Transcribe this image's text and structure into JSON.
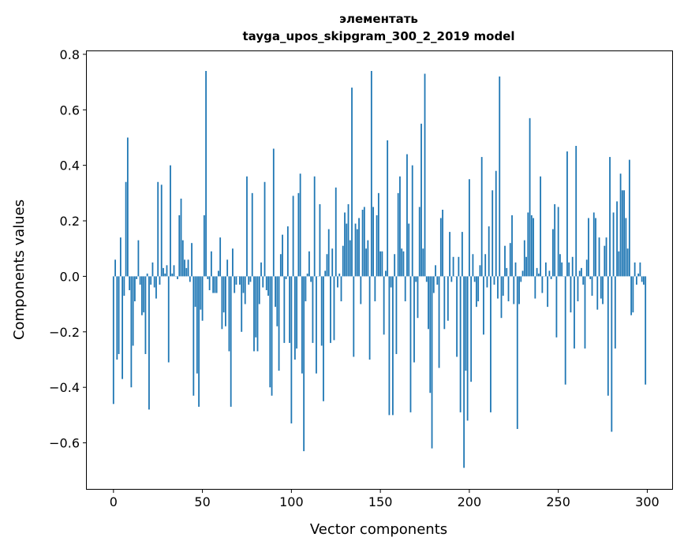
{
  "chart_data": {
    "type": "bar",
    "title_line1": "элементать",
    "title_line2": "tayga_upos_skipgram_300_2_2019 model",
    "xlabel": "Vector components",
    "ylabel": "Components values",
    "xlim": [
      -15,
      314
    ],
    "ylim": [
      -0.766,
      0.811
    ],
    "xticks": [
      0,
      50,
      100,
      150,
      200,
      250,
      300
    ],
    "xtick_labels": [
      "0",
      "50",
      "100",
      "150",
      "200",
      "250",
      "300"
    ],
    "yticks": [
      -0.6,
      -0.4,
      -0.2,
      0.0,
      0.2,
      0.4,
      0.6,
      0.8
    ],
    "ytick_labels": [
      "−0.6",
      "−0.4",
      "−0.2",
      "0.0",
      "0.2",
      "0.4",
      "0.6",
      "0.8"
    ],
    "grid": false,
    "bar_color": "#1f77b4",
    "values": [
      -0.46,
      0.06,
      -0.3,
      -0.28,
      0.14,
      -0.37,
      -0.07,
      0.34,
      0.5,
      -0.05,
      -0.4,
      -0.25,
      -0.09,
      -0.01,
      0.13,
      -0.03,
      -0.14,
      -0.13,
      -0.28,
      0.01,
      -0.48,
      -0.03,
      0.05,
      -0.04,
      -0.08,
      0.34,
      -0.03,
      0.33,
      0.03,
      0.01,
      0.04,
      -0.31,
      0.4,
      0.01,
      0.04,
      0.0,
      -0.01,
      0.22,
      0.28,
      0.13,
      0.06,
      0.03,
      0.06,
      -0.02,
      0.12,
      -0.43,
      -0.11,
      -0.35,
      -0.47,
      -0.12,
      -0.16,
      0.22,
      0.74,
      -0.01,
      -0.05,
      0.09,
      -0.06,
      -0.06,
      -0.06,
      0.02,
      0.14,
      -0.19,
      -0.13,
      -0.18,
      0.06,
      -0.27,
      -0.47,
      0.1,
      -0.06,
      -0.03,
      0.0,
      -0.03,
      -0.2,
      -0.06,
      -0.1,
      0.36,
      -0.03,
      -0.02,
      0.3,
      -0.27,
      -0.22,
      -0.27,
      -0.1,
      0.05,
      -0.04,
      0.34,
      -0.05,
      -0.07,
      -0.4,
      -0.43,
      0.46,
      -0.11,
      -0.18,
      -0.34,
      0.08,
      0.15,
      -0.24,
      -0.01,
      0.18,
      -0.24,
      -0.53,
      0.29,
      -0.3,
      -0.26,
      0.3,
      0.37,
      -0.35,
      -0.63,
      -0.09,
      0.01,
      0.09,
      -0.02,
      -0.24,
      0.36,
      -0.35,
      0.0,
      0.26,
      -0.25,
      -0.45,
      0.02,
      0.08,
      0.17,
      -0.24,
      0.1,
      -0.23,
      0.32,
      -0.04,
      0.01,
      -0.09,
      0.11,
      0.23,
      0.19,
      0.26,
      0.13,
      0.68,
      -0.29,
      0.19,
      0.17,
      0.21,
      -0.1,
      0.24,
      0.25,
      0.1,
      0.13,
      -0.3,
      0.74,
      0.25,
      -0.09,
      0.22,
      0.3,
      0.09,
      0.09,
      -0.21,
      0.02,
      0.49,
      -0.5,
      -0.04,
      -0.5,
      0.08,
      -0.28,
      0.3,
      0.36,
      0.1,
      0.09,
      -0.09,
      0.44,
      0.19,
      -0.49,
      0.4,
      -0.31,
      -0.02,
      -0.15,
      0.25,
      0.55,
      0.1,
      0.73,
      -0.02,
      -0.19,
      -0.42,
      -0.62,
      -0.06,
      0.04,
      -0.03,
      -0.33,
      0.21,
      0.24,
      -0.19,
      0.0,
      -0.16,
      0.16,
      -0.02,
      0.07,
      0.0,
      -0.29,
      0.07,
      -0.49,
      0.16,
      -0.69,
      -0.34,
      -0.52,
      0.35,
      -0.38,
      0.08,
      -0.02,
      -0.11,
      -0.09,
      0.04,
      0.43,
      -0.21,
      0.08,
      -0.04,
      0.18,
      -0.49,
      0.31,
      -0.03,
      0.38,
      -0.08,
      0.72,
      -0.15,
      -0.07,
      0.11,
      0.03,
      -0.09,
      0.12,
      0.22,
      -0.1,
      0.05,
      -0.55,
      -0.1,
      -0.02,
      0.02,
      0.13,
      0.07,
      0.23,
      0.57,
      0.22,
      0.21,
      -0.08,
      0.03,
      0.01,
      0.36,
      -0.06,
      0.0,
      0.05,
      -0.11,
      0.02,
      -0.01,
      0.17,
      0.26,
      -0.22,
      0.25,
      0.08,
      0.05,
      0.0,
      -0.39,
      0.45,
      0.05,
      -0.13,
      0.07,
      -0.26,
      0.47,
      -0.09,
      0.02,
      0.03,
      -0.03,
      -0.26,
      0.06,
      0.21,
      -0.01,
      -0.07,
      0.23,
      0.21,
      -0.12,
      0.14,
      -0.08,
      -0.1,
      0.11,
      0.14,
      -0.43,
      0.43,
      -0.56,
      0.23,
      -0.26,
      0.27,
      0.09,
      0.37,
      0.31,
      0.31,
      0.21,
      0.1,
      0.42,
      -0.14,
      -0.13,
      0.05,
      -0.03,
      0.01,
      0.05,
      -0.02,
      -0.03,
      -0.39
    ]
  }
}
